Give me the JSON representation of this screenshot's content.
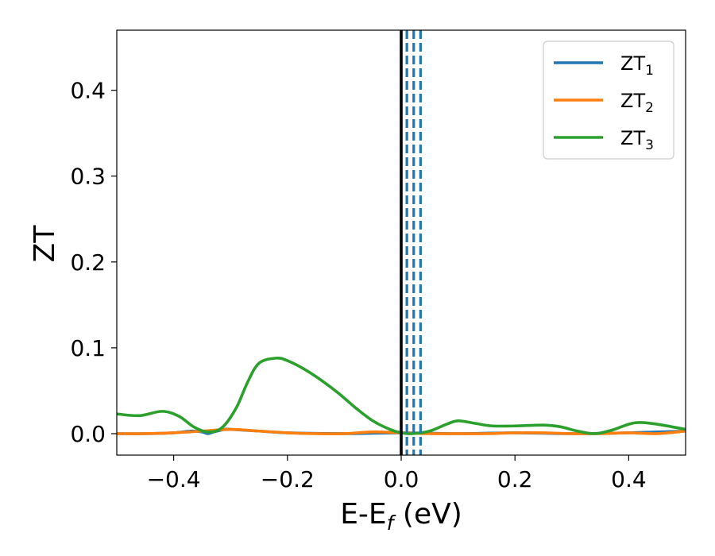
{
  "chart_data": {
    "type": "line",
    "xlabel_main": "E-E",
    "xlabel_sub": "f",
    "xlabel_unit": " (eV)",
    "ylabel": "ZT",
    "xlim": [
      -0.5,
      0.5
    ],
    "ylim": [
      -0.025,
      0.47
    ],
    "x_ticks": [
      -0.4,
      -0.2,
      0.0,
      0.2,
      0.4
    ],
    "x_tick_labels": [
      "−0.4",
      "−0.2",
      "0.0",
      "0.2",
      "0.4"
    ],
    "y_ticks": [
      0.0,
      0.1,
      0.2,
      0.3,
      0.4
    ],
    "y_tick_labels": [
      "0.0",
      "0.1",
      "0.2",
      "0.3",
      "0.4"
    ],
    "grid": false,
    "legend_position": "top-right",
    "series": [
      {
        "name": "ZT",
        "name_sub": "1",
        "color": "#1f77b4",
        "x": [
          -0.5,
          -0.45,
          -0.4,
          -0.37,
          -0.35,
          -0.34,
          -0.33,
          -0.31,
          -0.3,
          -0.25,
          -0.2,
          -0.1,
          0.0,
          0.1,
          0.2,
          0.3,
          0.4,
          0.5
        ],
        "y": [
          0.0,
          0.0,
          0.001,
          0.003,
          0.002,
          0.0,
          0.002,
          0.005,
          0.005,
          0.003,
          0.001,
          0.0,
          0.001,
          0.0,
          0.001,
          0.0,
          0.001,
          0.003
        ]
      },
      {
        "name": "ZT",
        "name_sub": "2",
        "color": "#ff7f0e",
        "x": [
          -0.5,
          -0.45,
          -0.4,
          -0.35,
          -0.3,
          -0.25,
          -0.2,
          -0.15,
          -0.1,
          -0.05,
          0.0,
          0.05,
          0.1,
          0.15,
          0.2,
          0.25,
          0.3,
          0.35,
          0.4,
          0.45,
          0.5
        ],
        "y": [
          0.0,
          0.0,
          0.001,
          0.003,
          0.005,
          0.003,
          0.001,
          0.0,
          0.0,
          0.002,
          0.001,
          0.0,
          0.0,
          0.0,
          0.001,
          0.001,
          0.0,
          0.0,
          0.001,
          0.0,
          0.003
        ]
      },
      {
        "name": "ZT",
        "name_sub": "3",
        "color": "#2ca02c",
        "x": [
          -0.5,
          -0.46,
          -0.42,
          -0.39,
          -0.365,
          -0.34,
          -0.315,
          -0.29,
          -0.27,
          -0.25,
          -0.22,
          -0.2,
          -0.17,
          -0.14,
          -0.11,
          -0.08,
          -0.05,
          -0.02,
          0.0,
          0.02,
          0.05,
          0.08,
          0.1,
          0.13,
          0.16,
          0.2,
          0.25,
          0.28,
          0.31,
          0.34,
          0.37,
          0.4,
          0.42,
          0.45,
          0.5
        ],
        "y": [
          0.023,
          0.021,
          0.026,
          0.02,
          0.008,
          0.002,
          0.007,
          0.03,
          0.06,
          0.082,
          0.088,
          0.085,
          0.075,
          0.062,
          0.047,
          0.03,
          0.015,
          0.005,
          0.001,
          0.0,
          0.003,
          0.011,
          0.015,
          0.012,
          0.009,
          0.009,
          0.01,
          0.008,
          0.003,
          0.0,
          0.004,
          0.011,
          0.013,
          0.011,
          0.005
        ]
      }
    ],
    "vlines": [
      {
        "x": 0.0,
        "style": "solid",
        "color": "#000000"
      },
      {
        "x": 0.01,
        "style": "dashed",
        "color": "#1f77b4"
      },
      {
        "x": 0.022,
        "style": "dashed",
        "color": "#1f77b4"
      },
      {
        "x": 0.034,
        "style": "dashed",
        "color": "#1f77b4"
      }
    ]
  }
}
